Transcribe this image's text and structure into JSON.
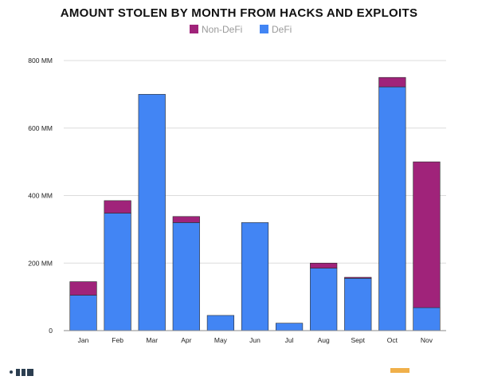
{
  "chart_data": {
    "type": "bar",
    "stacked": true,
    "title": "AMOUNT STOLEN BY MONTH FROM HACKS AND EXPLOITS",
    "xlabel": "",
    "ylabel": "",
    "categories": [
      "Jan",
      "Feb",
      "Mar",
      "Apr",
      "May",
      "Jun",
      "Jul",
      "Aug",
      "Sept",
      "Oct",
      "Nov"
    ],
    "series": [
      {
        "name": "DeFi",
        "color": "#4285f4",
        "values": [
          105,
          348,
          700,
          320,
          45,
          320,
          22,
          185,
          155,
          722,
          68
        ]
      },
      {
        "name": "Non-DeFi",
        "color": "#a0237a",
        "values": [
          40,
          37,
          0,
          18,
          0,
          0,
          0,
          15,
          3,
          28,
          432
        ]
      }
    ],
    "legend_order": [
      "Non-DeFi",
      "DeFi"
    ],
    "ylim": [
      0,
      800
    ],
    "yticks": [
      0,
      200,
      400,
      600,
      800
    ],
    "ytick_labels": [
      "0",
      "200 MM",
      "400 MM",
      "600 MM",
      "800 MM"
    ],
    "grid": true,
    "legend_position": "top-center"
  }
}
